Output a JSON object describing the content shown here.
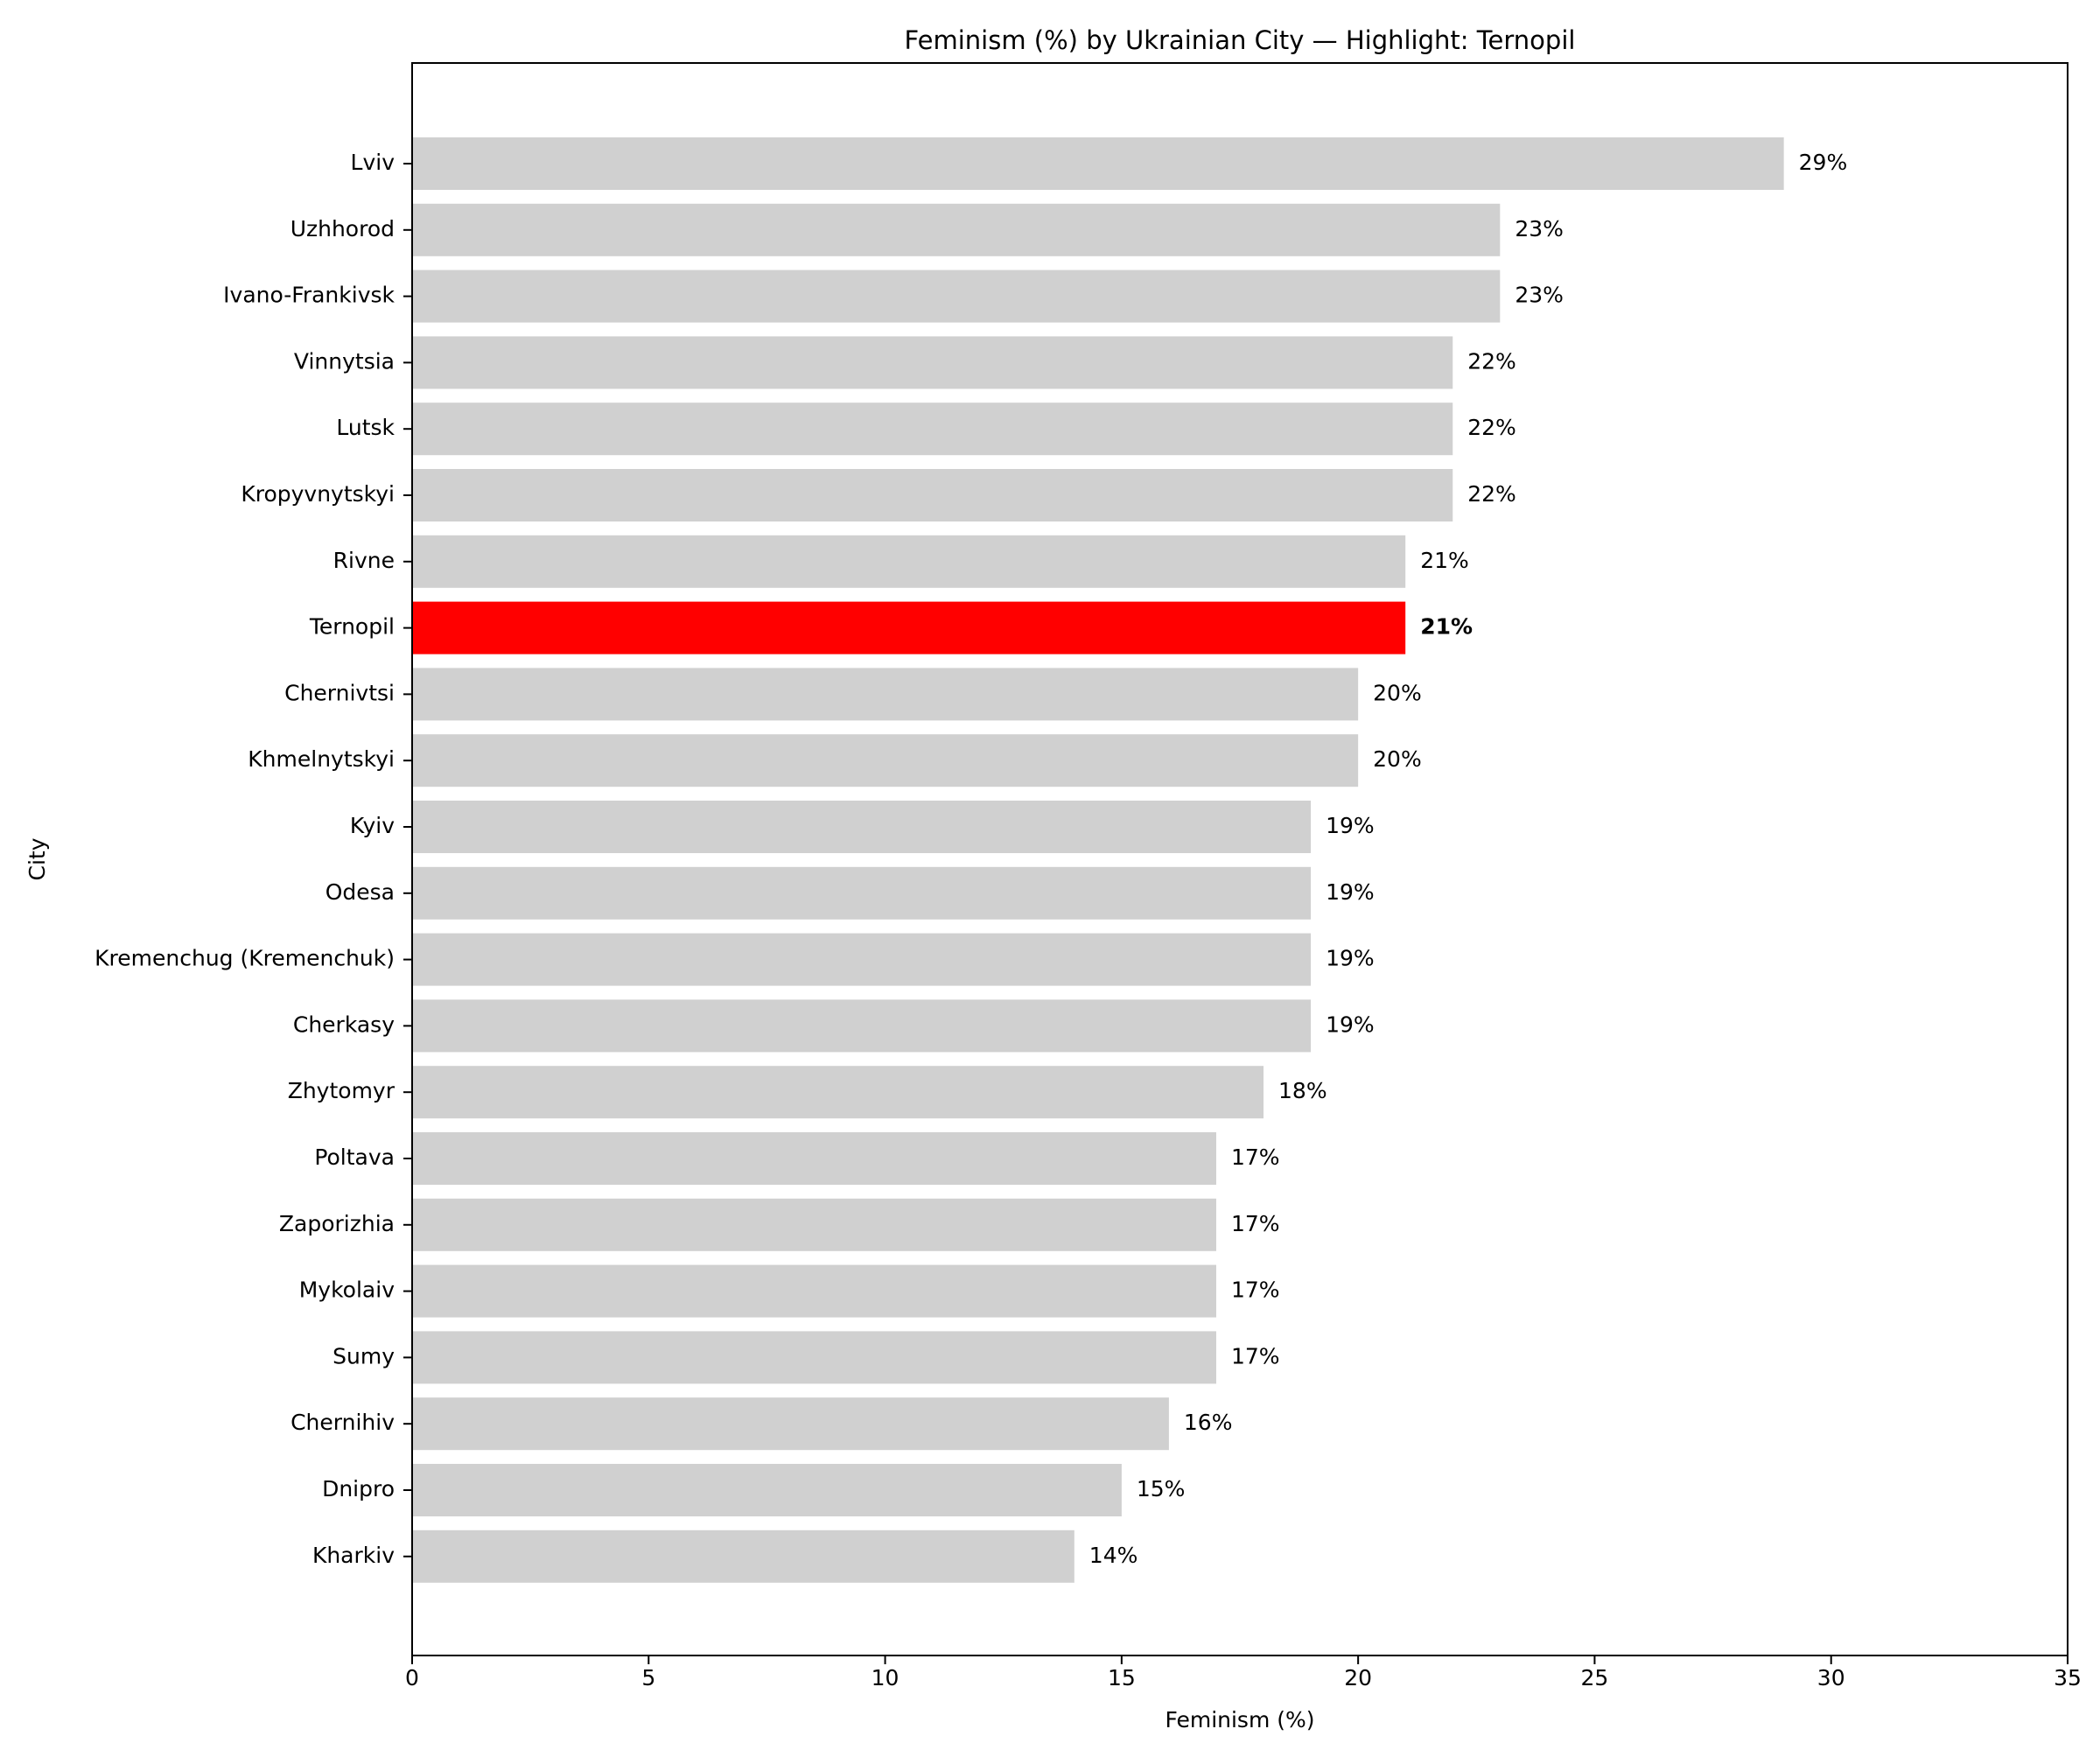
{
  "chart_data": {
    "type": "bar",
    "orientation": "horizontal",
    "title": "Feminism (%) by Ukrainian City — Highlight: Ternopil",
    "xlabel": "Feminism (%)",
    "ylabel": "City",
    "xlim": [
      0,
      35
    ],
    "xticks": [
      0,
      5,
      10,
      15,
      20,
      25,
      30,
      35
    ],
    "grid": false,
    "legend": "none",
    "highlight": "Ternopil",
    "colors": {
      "bar": "#d0d0d0",
      "highlight": "#ff0000"
    },
    "categories": [
      "Lviv",
      "Uzhhorod",
      "Ivano-Frankivsk",
      "Vinnytsia",
      "Lutsk",
      "Kropyvnytskyi",
      "Rivne",
      "Ternopil",
      "Chernivtsi",
      "Khmelnytskyi",
      "Kyiv",
      "Odesa",
      "Kremenchug (Kremenchuk)",
      "Cherkasy",
      "Zhytomyr",
      "Poltava",
      "Zaporizhia",
      "Mykolaiv",
      "Sumy",
      "Chernihiv",
      "Dnipro",
      "Kharkiv"
    ],
    "values": [
      29,
      23,
      23,
      22,
      22,
      22,
      21,
      21,
      20,
      20,
      19,
      19,
      19,
      19,
      18,
      17,
      17,
      17,
      17,
      16,
      15,
      14
    ],
    "value_labels": [
      "29%",
      "23%",
      "23%",
      "22%",
      "22%",
      "22%",
      "21%",
      "21%",
      "20%",
      "20%",
      "19%",
      "19%",
      "19%",
      "19%",
      "18%",
      "17%",
      "17%",
      "17%",
      "17%",
      "16%",
      "15%",
      "14%"
    ]
  }
}
